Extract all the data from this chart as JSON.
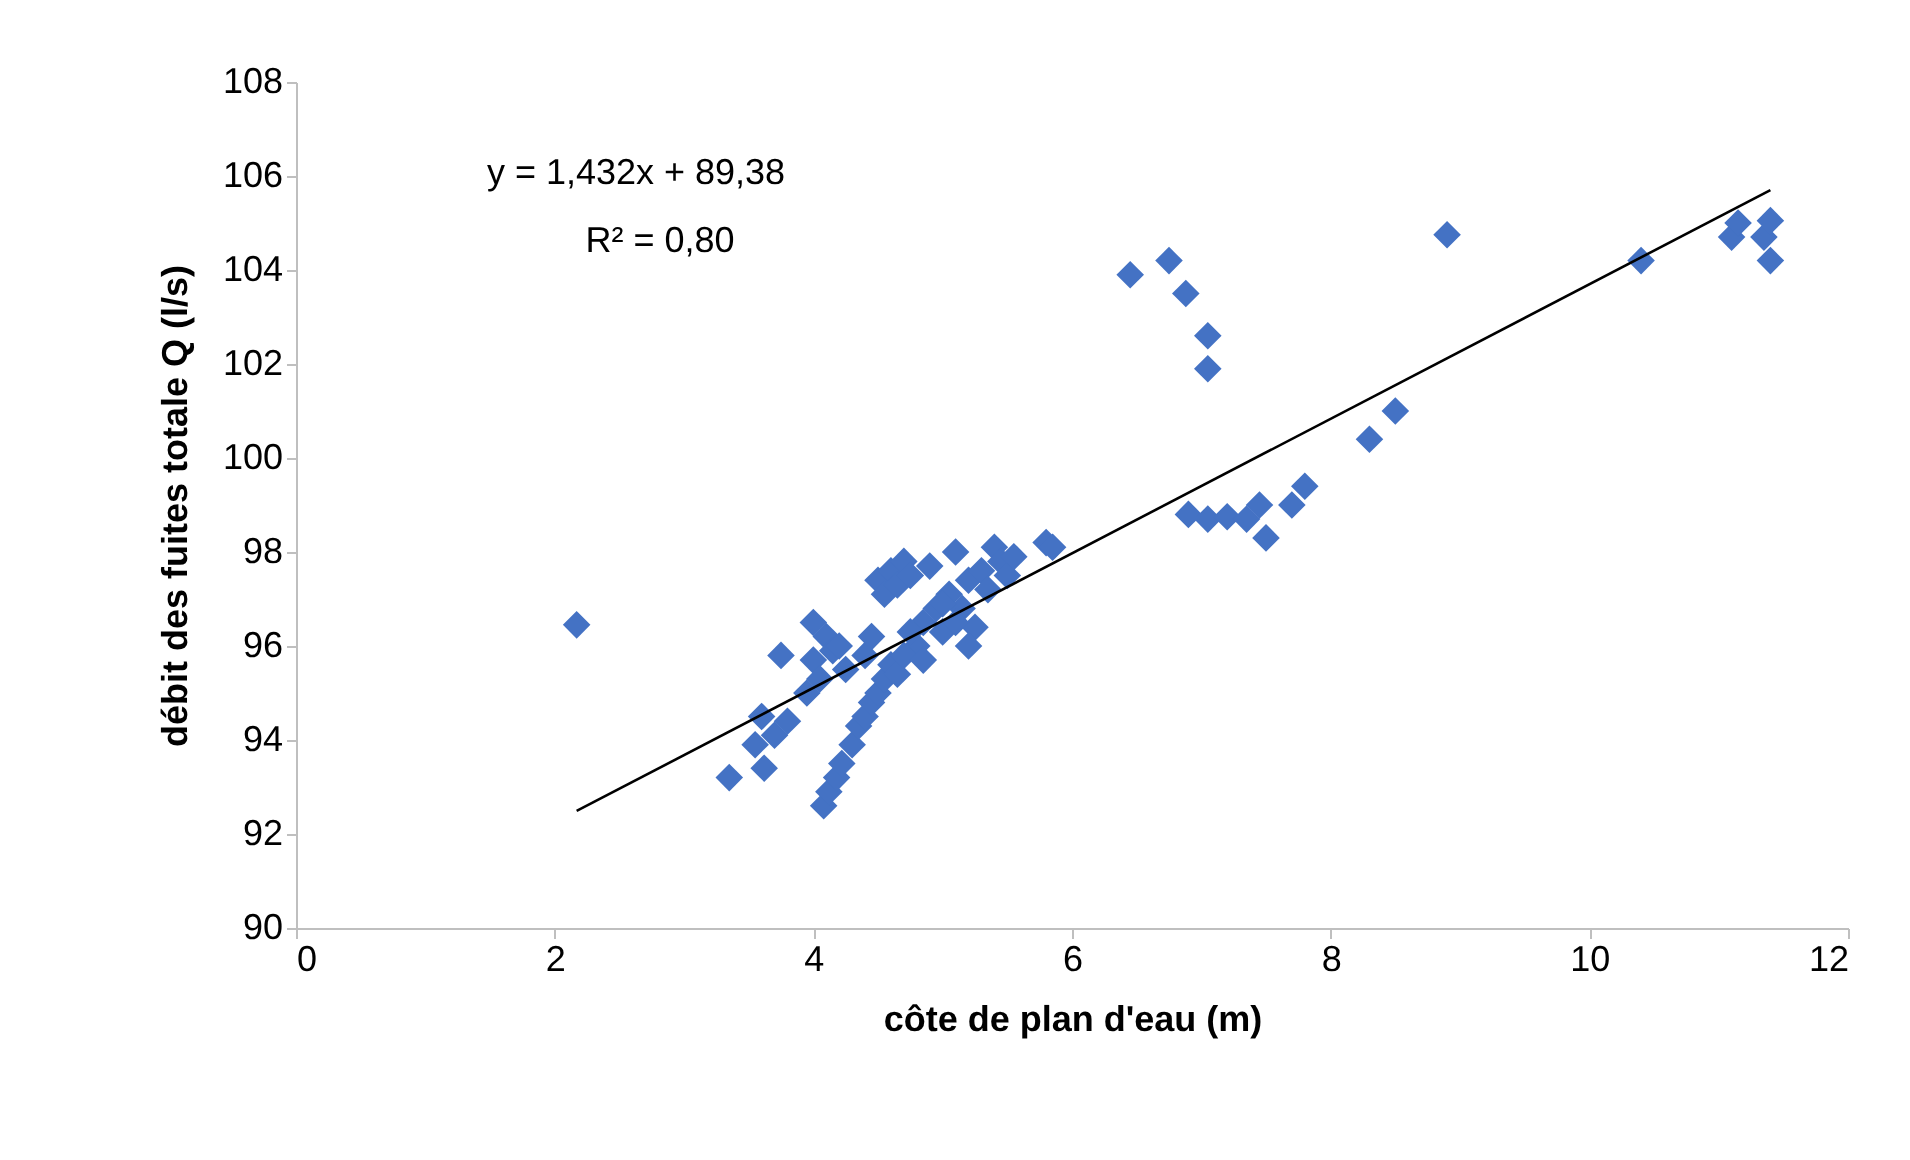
{
  "chart_data": {
    "type": "scatter",
    "xlabel": "côte de plan d'eau (m)",
    "ylabel": "débit des fuites totale Q (l/s)",
    "xlim": [
      0,
      12
    ],
    "xticks": [
      0,
      2,
      4,
      6,
      8,
      10,
      12
    ],
    "ylim": [
      90,
      108
    ],
    "yticks": [
      90,
      92,
      94,
      96,
      98,
      100,
      102,
      104,
      106,
      108
    ],
    "grid": false,
    "marker": "diamond",
    "annotations": [
      "y = 1,432x + 89,38",
      "R² = 0,80"
    ],
    "series": [
      {
        "color": "#4472c4",
        "x": [
          2.17,
          3.35,
          3.55,
          3.6,
          3.62,
          3.7,
          3.75,
          3.8,
          3.95,
          4.0,
          4.0,
          4.05,
          4.1,
          4.15,
          4.2,
          4.25,
          4.08,
          4.12,
          4.18,
          4.22,
          4.3,
          4.35,
          4.4,
          4.45,
          4.5,
          4.55,
          4.6,
          4.65,
          4.5,
          4.55,
          4.6,
          4.65,
          4.7,
          4.75,
          4.8,
          4.85,
          4.9,
          4.95,
          5.0,
          5.05,
          5.1,
          5.15,
          5.2,
          5.25,
          5.3,
          5.35,
          5.4,
          5.45,
          5.5,
          5.55,
          5.8,
          5.85,
          4.4,
          4.45,
          4.7,
          4.75,
          4.85,
          5.0,
          5.1,
          5.2,
          6.45,
          6.75,
          6.88,
          7.05,
          7.05,
          6.9,
          7.05,
          7.2,
          7.35,
          7.45,
          7.5,
          7.7,
          7.8,
          8.3,
          8.5,
          8.9,
          10.4,
          11.1,
          11.15,
          11.35,
          11.4,
          11.4
        ],
        "values": [
          96.45,
          93.2,
          93.9,
          94.5,
          93.4,
          94.1,
          95.8,
          94.4,
          95.0,
          96.5,
          95.7,
          95.3,
          96.2,
          95.9,
          96.0,
          95.5,
          92.6,
          92.9,
          93.2,
          93.5,
          93.9,
          94.3,
          94.5,
          94.8,
          95.0,
          95.3,
          95.6,
          95.4,
          97.4,
          97.1,
          97.6,
          97.3,
          97.8,
          97.5,
          96.0,
          96.5,
          97.7,
          96.8,
          96.3,
          97.1,
          98.0,
          96.8,
          97.4,
          96.4,
          97.6,
          97.2,
          98.1,
          97.8,
          97.5,
          97.9,
          98.2,
          98.1,
          95.8,
          96.2,
          95.8,
          96.3,
          95.7,
          96.9,
          96.5,
          96.0,
          103.9,
          104.2,
          103.5,
          102.6,
          101.9,
          98.8,
          98.7,
          98.75,
          98.7,
          99.0,
          98.3,
          99.0,
          99.4,
          100.4,
          101.0,
          104.75,
          104.2,
          104.7,
          105.0,
          104.7,
          104.2,
          105.05
        ]
      },
      {
        "type": "line",
        "color": "#000000",
        "line_style": "solid",
        "marker": "none",
        "x": [
          2.17,
          11.4
        ],
        "values": [
          92.49,
          105.7
        ]
      }
    ]
  }
}
